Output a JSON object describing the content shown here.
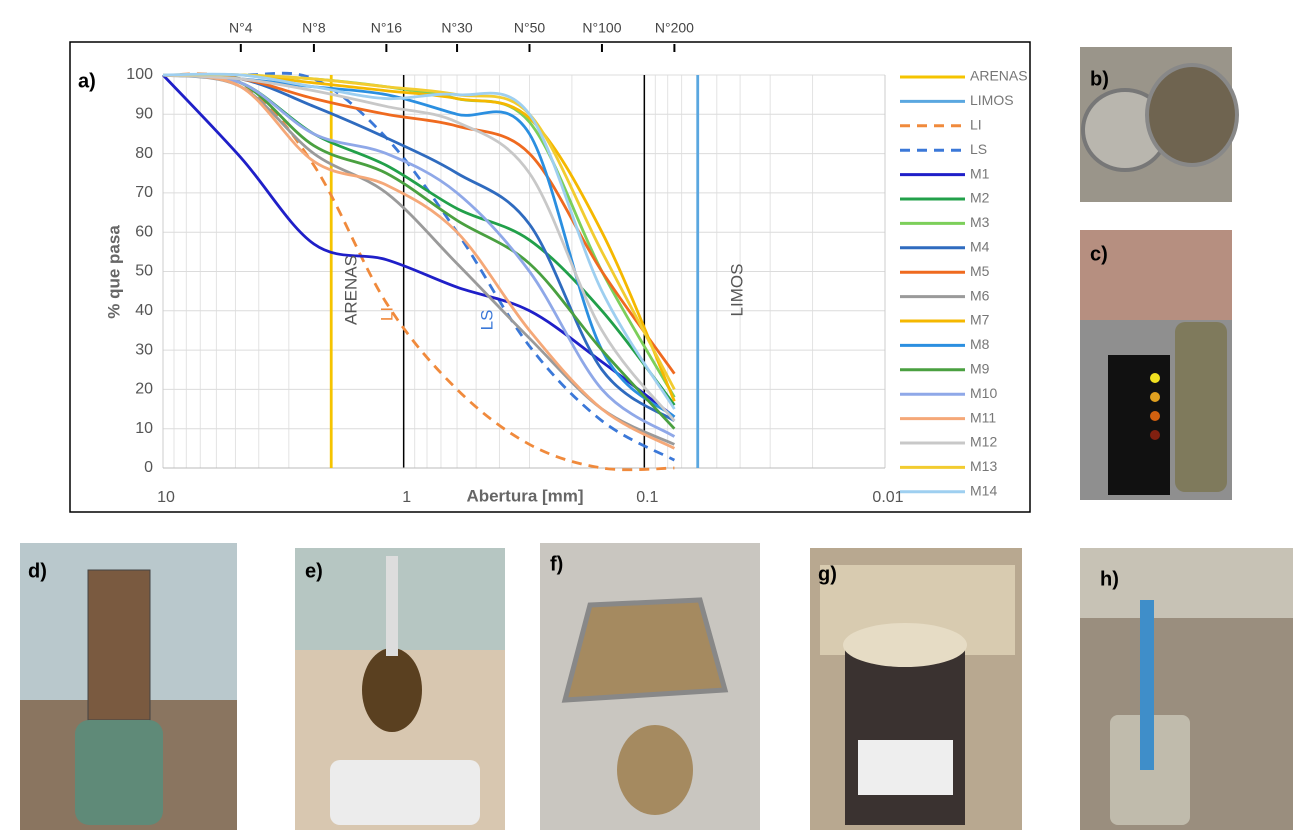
{
  "chart_data": {
    "type": "line",
    "panel_label": "a)",
    "x_log": true,
    "minor_grid": true,
    "xlabel": "Abertura [mm]",
    "ylabel": "% que pasa",
    "xlim": [
      10,
      0.01
    ],
    "ylim": [
      0,
      100
    ],
    "xticks": [
      {
        "value": 10,
        "label": "10"
      },
      1,
      0.1,
      0.01
    ],
    "yticks": [
      0,
      10,
      20,
      30,
      40,
      50,
      60,
      70,
      80,
      90,
      100
    ],
    "top_ticks": [
      {
        "value": 4.75,
        "label": "N°4"
      },
      {
        "value": 2.36,
        "label": "N°8"
      },
      {
        "value": 1.18,
        "label": "N°16"
      },
      {
        "value": 0.6,
        "label": "N°30"
      },
      {
        "value": 0.3,
        "label": "N°50"
      },
      {
        "value": 0.15,
        "label": "N°100"
      },
      {
        "value": 0.075,
        "label": "N°200"
      }
    ],
    "x": [
      10,
      4.75,
      2.36,
      1.18,
      0.6,
      0.3,
      0.15,
      0.075
    ],
    "series": [
      {
        "name": "ARENAS",
        "color": "#f5c400",
        "x": [
          2,
          2
        ],
        "values": [
          0,
          100
        ]
      },
      {
        "name": "LIMOS",
        "color": "#5aa7e0",
        "x": [
          0.06,
          0.06
        ],
        "values": [
          0,
          100
        ]
      },
      {
        "name": "LI",
        "color": "#f08a3c",
        "line_style": "dashed",
        "values": [
          100,
          98,
          77,
          42,
          20,
          6,
          0,
          0
        ]
      },
      {
        "name": "LS",
        "color": "#3b78d8",
        "line_style": "dashed",
        "values": [
          100,
          100,
          99,
          84,
          60,
          31,
          12,
          2
        ]
      },
      {
        "name": "M1",
        "color": "#1f1fc8",
        "values": [
          100,
          79,
          57,
          53,
          46,
          40,
          27,
          13
        ]
      },
      {
        "name": "M2",
        "color": "#22a04a",
        "values": [
          100,
          98,
          85,
          77,
          66,
          58,
          40,
          16
        ]
      },
      {
        "name": "M3",
        "color": "#7ccf5a",
        "values": [
          100,
          100,
          99,
          97,
          94,
          88,
          50,
          18
        ]
      },
      {
        "name": "M4",
        "color": "#2f6bbf",
        "values": [
          100,
          99,
          92,
          84,
          75,
          62,
          25,
          12
        ]
      },
      {
        "name": "M5",
        "color": "#ef6a1f",
        "values": [
          100,
          99,
          94,
          90,
          87,
          80,
          50,
          24
        ]
      },
      {
        "name": "M6",
        "color": "#9a9a9a",
        "values": [
          100,
          97,
          80,
          70,
          52,
          33,
          15,
          6
        ]
      },
      {
        "name": "M7",
        "color": "#f5b800",
        "values": [
          100,
          100,
          98,
          96,
          94,
          89,
          60,
          17
        ]
      },
      {
        "name": "M8",
        "color": "#2b8fe0",
        "values": [
          100,
          99,
          97,
          95,
          90,
          85,
          30,
          13
        ]
      },
      {
        "name": "M9",
        "color": "#4aa040",
        "values": [
          100,
          98,
          82,
          75,
          63,
          52,
          30,
          10
        ]
      },
      {
        "name": "M10",
        "color": "#8fa8e8",
        "values": [
          100,
          98,
          85,
          80,
          70,
          50,
          20,
          8
        ]
      },
      {
        "name": "M11",
        "color": "#f5a878",
        "values": [
          100,
          97,
          78,
          72,
          60,
          35,
          15,
          5
        ]
      },
      {
        "name": "M12",
        "color": "#c8c8c8",
        "values": [
          100,
          99,
          96,
          92,
          88,
          75,
          35,
          12
        ]
      },
      {
        "name": "M13",
        "color": "#f2cc30",
        "values": [
          100,
          100,
          99,
          97,
          95,
          90,
          55,
          20
        ]
      },
      {
        "name": "M14",
        "color": "#9ecff0",
        "values": [
          100,
          100,
          97,
          94,
          95,
          90,
          45,
          15
        ]
      }
    ],
    "annotations": [
      {
        "text": "ARENAS"
      },
      {
        "text": "LI"
      },
      {
        "text": "LS"
      },
      {
        "text": "LIMOS"
      }
    ]
  },
  "photos": [
    {
      "label": "b)"
    },
    {
      "label": "c)"
    },
    {
      "label": "d)"
    },
    {
      "label": "e)"
    },
    {
      "label": "f)"
    },
    {
      "label": "g)"
    },
    {
      "label": "h)"
    }
  ]
}
